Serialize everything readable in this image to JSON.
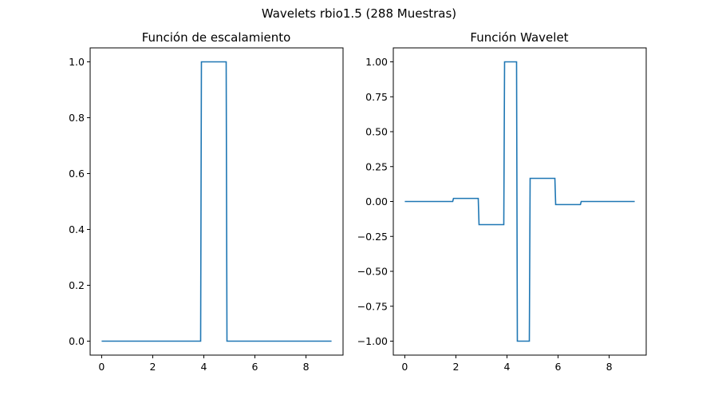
{
  "suptitle": "Wavelets rbio1.5 (288 Muestras)",
  "colors": {
    "line": "#1f77b4",
    "frame": "#000000",
    "background": "#ffffff"
  },
  "chart_data": [
    {
      "type": "line",
      "title": "Función de escalamiento",
      "xlabel": "",
      "ylabel": "",
      "grid": false,
      "xlim": [
        -0.45,
        9.45
      ],
      "ylim": [
        -0.05,
        1.05
      ],
      "xticks": [
        0,
        2,
        4,
        6,
        8
      ],
      "xtick_labels": [
        "0",
        "2",
        "4",
        "6",
        "8"
      ],
      "yticks": [
        0.0,
        0.2,
        0.4,
        0.6,
        0.8,
        1.0
      ],
      "ytick_labels": [
        "0.0",
        "0.2",
        "0.4",
        "0.6",
        "0.8",
        "1.0"
      ],
      "series": [
        {
          "x": [
            0,
            3.875,
            3.906,
            4.875,
            4.906,
            9
          ],
          "y": [
            0,
            0,
            1,
            1,
            0,
            0
          ]
        }
      ]
    },
    {
      "type": "line",
      "title": "Función Wavelet",
      "xlabel": "",
      "ylabel": "",
      "grid": false,
      "xlim": [
        -0.45,
        9.45
      ],
      "ylim": [
        -1.1,
        1.1
      ],
      "xticks": [
        0,
        2,
        4,
        6,
        8
      ],
      "xtick_labels": [
        "0",
        "2",
        "4",
        "6",
        "8"
      ],
      "yticks": [
        -1.0,
        -0.75,
        -0.5,
        -0.25,
        0.0,
        0.25,
        0.5,
        0.75,
        1.0
      ],
      "ytick_labels": [
        "−1.00",
        "−0.75",
        "−0.50",
        "−0.25",
        "0.00",
        "0.25",
        "0.50",
        "0.75",
        "1.00"
      ],
      "series": [
        {
          "x": [
            0,
            1.875,
            1.906,
            2.875,
            2.906,
            3.875,
            3.906,
            4.375,
            4.406,
            4.875,
            4.906,
            5.875,
            5.906,
            6.875,
            6.906,
            9
          ],
          "y": [
            0,
            0,
            0.0221,
            0.0221,
            -0.1657,
            -0.1657,
            1,
            1,
            -1,
            -1,
            0.1657,
            0.1657,
            -0.0221,
            -0.0221,
            0,
            0
          ]
        }
      ]
    }
  ]
}
